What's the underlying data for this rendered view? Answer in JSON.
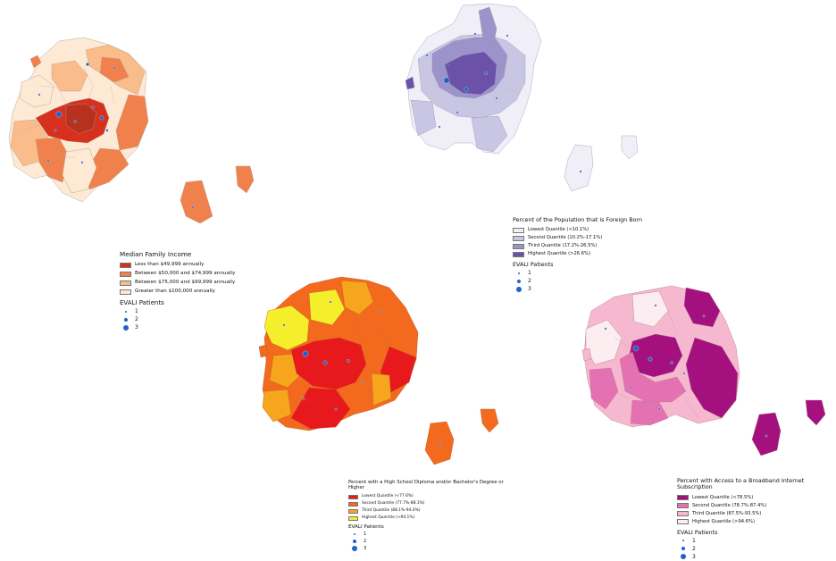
{
  "maps": {
    "income": {
      "legend_title": "Median Family Income",
      "classes": [
        {
          "label": "Less than $49,999 annually",
          "color": "#d7301f"
        },
        {
          "label": "Between $50,000 and $74,999 annually",
          "color": "#f0814c"
        },
        {
          "label": "Between $75,000 and $99,999 annually",
          "color": "#f9bc8a"
        },
        {
          "label": "Greater than $100,000 annually",
          "color": "#fde9d4"
        }
      ],
      "points_title": "EVALI Patients",
      "points": [
        "1",
        "2",
        "3"
      ]
    },
    "foreign_born": {
      "legend_title": "Percent of the Population that is Foreign Born",
      "classes": [
        {
          "label": "Lowest Quantile (<10.1%)",
          "color": "#f0eff7"
        },
        {
          "label": "Second Quantile (10.2%-17.1%)",
          "color": "#c9c6e3"
        },
        {
          "label": "Third Quantile (17.2%-26.5%)",
          "color": "#9b93c9"
        },
        {
          "label": "Highest Quantile (>26.6%)",
          "color": "#6b51a8"
        }
      ],
      "points_title": "EVALI Patients",
      "points": [
        "1",
        "2",
        "3"
      ]
    },
    "education": {
      "legend_title": "Percent with a High School Diploma and/or Bachelor's Degree or Higher",
      "classes": [
        {
          "label": "Lowest Quantile (<77.6%)",
          "color": "#e8191c"
        },
        {
          "label": "Second Quantile (77.7%-88.1%)",
          "color": "#f36a1e"
        },
        {
          "label": "Third Quantile (88.1%-94.0%)",
          "color": "#f7a51c"
        },
        {
          "label": "Highest Quantile (>94.1%)",
          "color": "#f5ee2a"
        }
      ],
      "points_title": "EVALI Patients",
      "points": [
        "1",
        "2",
        "3"
      ]
    },
    "broadband": {
      "legend_title": "Percent with Access to a Broadband Internet Subscription",
      "classes": [
        {
          "label": "Lowest Quantile (<78.5%)",
          "color": "#a4117f"
        },
        {
          "label": "Second Quantile (78.7%-87.4%)",
          "color": "#e472b2"
        },
        {
          "label": "Third Quantile (87.5%-93.5%)",
          "color": "#f6b8cf"
        },
        {
          "label": "Highest Quantile (>94.6%)",
          "color": "#fcedf1"
        }
      ],
      "points_title": "EVALI Patients",
      "points": [
        "1",
        "2",
        "3"
      ]
    }
  },
  "point_color": "#1f63c6"
}
